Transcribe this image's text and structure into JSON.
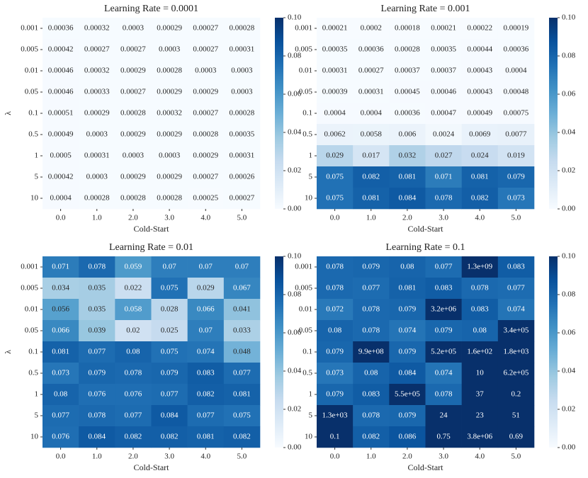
{
  "chart_data": [
    {
      "type": "heatmap",
      "title": "Learning Rate = 0.0001",
      "xlabel": "Cold-Start",
      "ylabel": "λ",
      "colormap": "Blues",
      "categories": [
        "0.0",
        "1.0",
        "2.0",
        "3.0",
        "4.0",
        "5.0"
      ],
      "rows": [
        "0.001",
        "0.005",
        "0.01",
        "0.05",
        "0.1",
        "0.5",
        "1",
        "5",
        "10"
      ],
      "values": [
        [
          0.00036,
          0.00032,
          0.0003,
          0.00029,
          0.00027,
          0.00028
        ],
        [
          0.00042,
          0.00027,
          0.00027,
          0.0003,
          0.00027,
          0.00031
        ],
        [
          0.00046,
          0.00032,
          0.00029,
          0.00028,
          0.0003,
          0.0003
        ],
        [
          0.00046,
          0.00033,
          0.00027,
          0.00029,
          0.00029,
          0.0003
        ],
        [
          0.00051,
          0.00029,
          0.00028,
          0.00032,
          0.00027,
          0.00028
        ],
        [
          0.00049,
          0.0003,
          0.00029,
          0.00029,
          0.00028,
          0.00035
        ],
        [
          0.0005,
          0.00031,
          0.0003,
          0.0003,
          0.00029,
          0.00031
        ],
        [
          0.00042,
          0.0003,
          0.00029,
          0.00029,
          0.00027,
          0.00026
        ],
        [
          0.0004,
          0.00028,
          0.00028,
          0.00028,
          0.00025,
          0.00027
        ]
      ],
      "clim": [
        0,
        0.1
      ],
      "cticks": [
        {
          "value": 0,
          "label": "0.00"
        },
        {
          "value": 0.02,
          "label": "0.02"
        },
        {
          "value": 0.04,
          "label": "0.04"
        },
        {
          "value": 0.06,
          "label": "0.06"
        },
        {
          "value": 0.08,
          "label": "0.08"
        },
        {
          "value": 0.1,
          "label": "0.10"
        }
      ]
    },
    {
      "type": "heatmap",
      "title": "Learning Rate = 0.001",
      "xlabel": "Cold-Start",
      "colormap": "Blues",
      "categories": [
        "0.0",
        "1.0",
        "2.0",
        "3.0",
        "4.0",
        "5.0"
      ],
      "rows": [
        "0.001",
        "0.005",
        "0.01",
        "0.05",
        "0.1",
        "0.5",
        "1",
        "5",
        "10"
      ],
      "values": [
        [
          0.00021,
          0.0002,
          0.00018,
          0.00021,
          0.00022,
          0.00019
        ],
        [
          0.00035,
          0.00036,
          0.00028,
          0.00035,
          0.00044,
          0.00036
        ],
        [
          0.00031,
          0.00027,
          0.00037,
          0.00037,
          0.00043,
          0.0004
        ],
        [
          0.00039,
          0.00031,
          0.00045,
          0.00046,
          0.00043,
          0.00048
        ],
        [
          0.0004,
          0.0004,
          0.00036,
          0.00047,
          0.00049,
          0.00075
        ],
        [
          0.0062,
          0.0058,
          0.006,
          0.0024,
          0.0069,
          0.0077
        ],
        [
          0.029,
          0.017,
          0.032,
          0.027,
          0.024,
          0.019
        ],
        [
          0.075,
          0.082,
          0.081,
          0.071,
          0.081,
          0.079
        ],
        [
          0.075,
          0.081,
          0.084,
          0.078,
          0.082,
          0.073
        ]
      ],
      "clim": [
        0,
        0.1
      ],
      "cticks": [
        {
          "value": 0,
          "label": "0.00"
        },
        {
          "value": 0.02,
          "label": "0.02"
        },
        {
          "value": 0.04,
          "label": "0.04"
        },
        {
          "value": 0.06,
          "label": "0.06"
        },
        {
          "value": 0.08,
          "label": "0.08"
        },
        {
          "value": 0.1,
          "label": "0.10"
        }
      ]
    },
    {
      "type": "heatmap",
      "title": "Learning Rate = 0.01",
      "xlabel": "Cold-Start",
      "ylabel": "λ",
      "colormap": "Blues",
      "categories": [
        "0.0",
        "1.0",
        "2.0",
        "3.0",
        "4.0",
        "5.0"
      ],
      "rows": [
        "0.001",
        "0.005",
        "0.01",
        "0.05",
        "0.1",
        "0.5",
        "1",
        "5",
        "10"
      ],
      "values": [
        [
          0.071,
          0.078,
          0.059,
          0.07,
          0.07,
          0.07
        ],
        [
          0.034,
          0.035,
          0.022,
          0.075,
          0.029,
          0.067
        ],
        [
          0.056,
          0.035,
          0.058,
          0.028,
          0.066,
          0.041
        ],
        [
          0.066,
          0.039,
          0.02,
          0.025,
          0.07,
          0.033
        ],
        [
          0.081,
          0.077,
          0.08,
          0.075,
          0.074,
          0.048
        ],
        [
          0.073,
          0.079,
          0.078,
          0.079,
          0.083,
          0.077
        ],
        [
          0.08,
          0.076,
          0.076,
          0.077,
          0.082,
          0.081
        ],
        [
          0.077,
          0.078,
          0.077,
          0.084,
          0.077,
          0.075
        ],
        [
          0.076,
          0.084,
          0.082,
          0.082,
          0.081,
          0.082
        ]
      ],
      "clim": [
        0,
        0.1
      ],
      "cticks": [
        {
          "value": 0,
          "label": "0.00"
        },
        {
          "value": 0.02,
          "label": "0.02"
        },
        {
          "value": 0.04,
          "label": "0.04"
        },
        {
          "value": 0.06,
          "label": "0.06"
        },
        {
          "value": 0.08,
          "label": "0.08"
        },
        {
          "value": 0.1,
          "label": "0.10"
        }
      ]
    },
    {
      "type": "heatmap",
      "title": "Learning Rate = 0.1",
      "xlabel": "Cold-Start",
      "colormap": "Blues",
      "categories": [
        "0.0",
        "1.0",
        "2.0",
        "3.0",
        "4.0",
        "5.0"
      ],
      "rows": [
        "0.001",
        "0.005",
        "0.01",
        "0.05",
        "0.1",
        "0.5",
        "1",
        "5",
        "10"
      ],
      "values": [
        [
          0.078,
          0.079,
          0.08,
          0.077,
          1300000000,
          0.083
        ],
        [
          0.078,
          0.077,
          0.081,
          0.083,
          0.078,
          0.077
        ],
        [
          0.072,
          0.078,
          0.079,
          3200000,
          0.083,
          0.074
        ],
        [
          0.08,
          0.078,
          0.074,
          0.079,
          0.08,
          340000
        ],
        [
          0.079,
          990000000,
          0.079,
          520000,
          160,
          1800
        ],
        [
          0.073,
          0.08,
          0.084,
          0.074,
          10,
          620000
        ],
        [
          0.079,
          0.083,
          550000,
          0.078,
          37,
          0.2
        ],
        [
          1300,
          0.078,
          0.079,
          24,
          23,
          51
        ],
        [
          0.1,
          0.082,
          0.086,
          0.75,
          3800000,
          0.69
        ]
      ],
      "value_labels": [
        [
          "0.078",
          "0.079",
          "0.08",
          "0.077",
          "1.3e+09",
          "0.083"
        ],
        [
          "0.078",
          "0.077",
          "0.081",
          "0.083",
          "0.078",
          "0.077"
        ],
        [
          "0.072",
          "0.078",
          "0.079",
          "3.2e+06",
          "0.083",
          "0.074"
        ],
        [
          "0.08",
          "0.078",
          "0.074",
          "0.079",
          "0.08",
          "3.4e+05"
        ],
        [
          "0.079",
          "9.9e+08",
          "0.079",
          "5.2e+05",
          "1.6e+02",
          "1.8e+03"
        ],
        [
          "0.073",
          "0.08",
          "0.084",
          "0.074",
          "10",
          "6.2e+05"
        ],
        [
          "0.079",
          "0.083",
          "5.5e+05",
          "0.078",
          "37",
          "0.2"
        ],
        [
          "1.3e+03",
          "0.078",
          "0.079",
          "24",
          "23",
          "51"
        ],
        [
          "0.1",
          "0.082",
          "0.086",
          "0.75",
          "3.8e+06",
          "0.69"
        ]
      ],
      "clim": [
        0,
        0.1
      ],
      "cticks": [
        {
          "value": 0,
          "label": "0.00"
        },
        {
          "value": 0.02,
          "label": "0.02"
        },
        {
          "value": 0.04,
          "label": "0.04"
        },
        {
          "value": 0.06,
          "label": "0.06"
        },
        {
          "value": 0.08,
          "label": "0.08"
        },
        {
          "value": 0.1,
          "label": "0.10"
        }
      ]
    }
  ]
}
